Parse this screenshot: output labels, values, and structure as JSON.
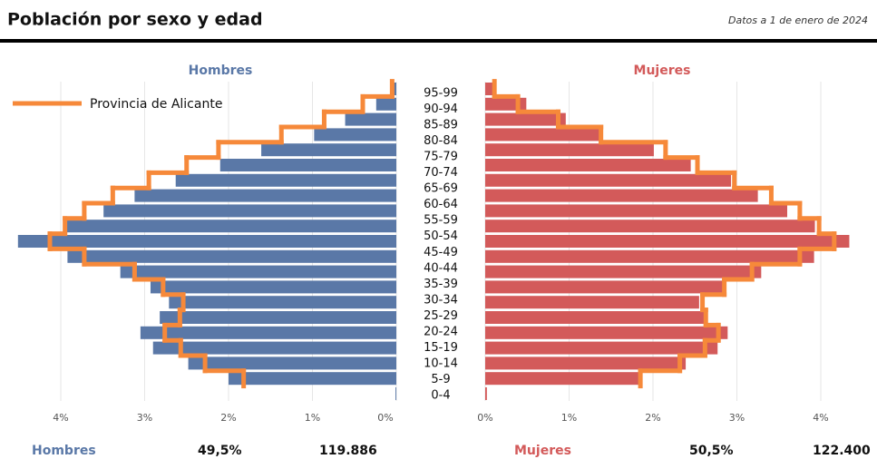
{
  "header": {
    "title": "Población por sexo y edad",
    "note": "Datos a 1 de enero de 2024"
  },
  "chart_data": [
    {
      "type": "pyramid-left",
      "title": "Hombres",
      "categories": [
        null,
        "95-99",
        "90-94",
        "85-89",
        "80-84",
        "75-79",
        "70-74",
        "65-69",
        "60-64",
        "55-59",
        "50-54",
        "45-49",
        "40-44",
        "35-39",
        "30-34",
        "25-29",
        "20-24",
        "15-19",
        "10-14",
        "5-9",
        "0-4"
      ],
      "xlim": [
        0,
        4.5
      ],
      "xticks": [
        {
          "value": 4,
          "label": "4%"
        },
        {
          "value": 3,
          "label": "3%"
        },
        {
          "value": 2,
          "label": "2%"
        },
        {
          "value": 1,
          "label": "1%"
        },
        {
          "value": 0,
          "label": "0%"
        }
      ],
      "grid": true,
      "legend": "upper left",
      "series": [
        {
          "name": "Hombres",
          "color": "#5a78a7",
          "values": [
            0.05,
            0.24,
            0.61,
            0.98,
            1.61,
            2.1,
            2.63,
            3.12,
            3.49,
            3.95,
            4.51,
            3.92,
            3.29,
            2.93,
            2.71,
            2.82,
            3.05,
            2.9,
            2.48,
            2.0,
            0.01
          ]
        },
        {
          "name": "Provincia de Alicante",
          "color": "#f6893a",
          "values": [
            0.05,
            0.4,
            0.86,
            1.37,
            2.12,
            2.5,
            2.95,
            3.38,
            3.72,
            3.95,
            4.13,
            3.72,
            3.12,
            2.78,
            2.54,
            2.58,
            2.76,
            2.57,
            2.28,
            1.82,
            null
          ]
        }
      ]
    },
    {
      "type": "pyramid-right",
      "title": "Mujeres",
      "xlim": [
        0,
        4.5
      ],
      "xticks": [
        {
          "value": 0,
          "label": "0%"
        },
        {
          "value": 1,
          "label": "1%"
        },
        {
          "value": 2,
          "label": "2%"
        },
        {
          "value": 3,
          "label": "3%"
        },
        {
          "value": 4,
          "label": "4%"
        }
      ],
      "grid": true,
      "series": [
        {
          "name": "Mujeres",
          "color": "#d35a5a",
          "values": [
            0.12,
            0.49,
            0.96,
            1.38,
            2.01,
            2.45,
            2.93,
            3.25,
            3.6,
            3.93,
            4.34,
            3.92,
            3.29,
            2.85,
            2.55,
            2.65,
            2.89,
            2.77,
            2.39,
            1.83,
            0.02
          ]
        },
        {
          "name": "Provincia de Alicante",
          "color": "#f6893a",
          "values": [
            0.11,
            0.39,
            0.87,
            1.38,
            2.15,
            2.53,
            2.97,
            3.41,
            3.75,
            3.98,
            4.16,
            3.75,
            3.18,
            2.85,
            2.59,
            2.63,
            2.78,
            2.62,
            2.32,
            1.85,
            null
          ]
        }
      ]
    }
  ],
  "summary": [
    {
      "label": "Hombres",
      "percent": "49,5%",
      "total": "119.886"
    },
    {
      "label": "Mujeres",
      "percent": "50,5%",
      "total": "122.400"
    }
  ]
}
